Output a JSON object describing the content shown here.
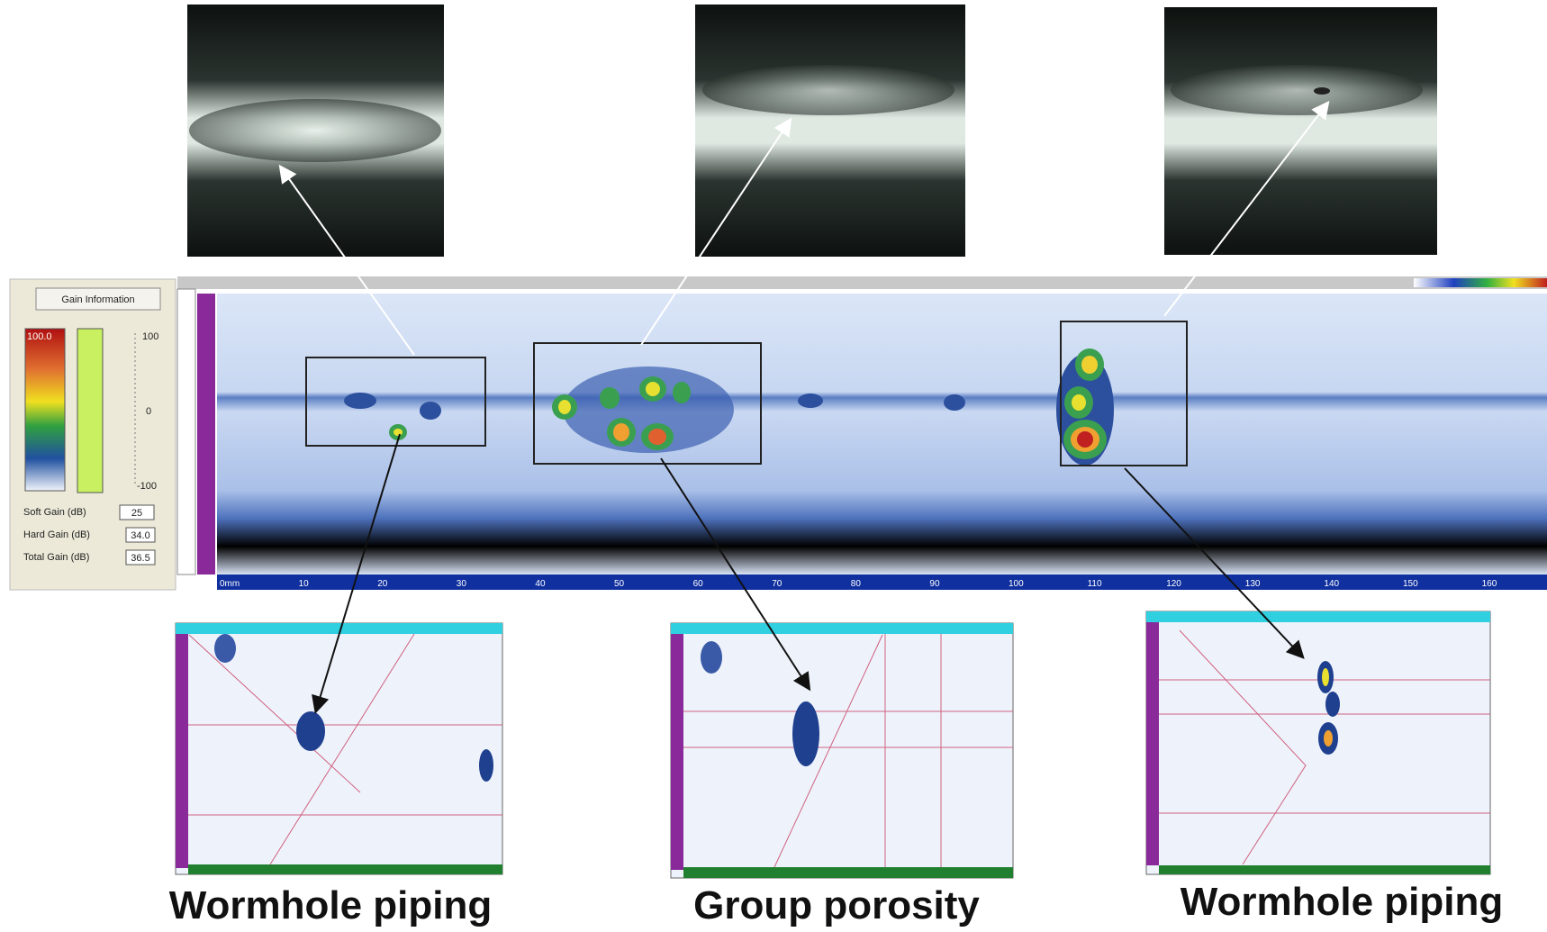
{
  "captions": [
    "Wormhole piping",
    "Group porosity",
    "Wormhole piping"
  ],
  "gain_panel": {
    "button": "Gain Information",
    "scale_top": "100.0",
    "slider_ticks": [
      "100",
      "0",
      "-100"
    ],
    "rows": [
      {
        "label": "Soft Gain (dB)",
        "value": "25"
      },
      {
        "label": "Hard Gain (dB)",
        "value": "34.0"
      },
      {
        "label": "Total Gain (dB)",
        "value": "36.5"
      }
    ]
  },
  "cscan_axis": [
    "0mm",
    "10",
    "20",
    "30",
    "40",
    "50",
    "60",
    "70",
    "80",
    "90",
    "100",
    "110",
    "120",
    "130",
    "140",
    "150",
    "160"
  ]
}
